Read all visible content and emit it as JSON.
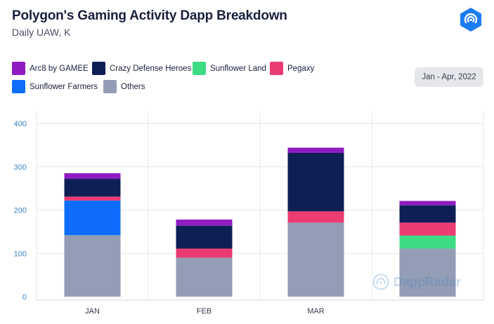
{
  "header": {
    "title": "Polygon's Gaming Activity Dapp Breakdown",
    "subtitle": "Daily UAW, K",
    "date_range": "Jan - Apr, 2022",
    "logo_icon": "dappradar-logo-icon",
    "watermark": "DappRadar"
  },
  "chart_data": {
    "type": "bar",
    "stacked": true,
    "categories": [
      "JAN",
      "FEB",
      "MAR",
      ""
    ],
    "ylim": [
      0,
      430
    ],
    "yticks": [
      0,
      100,
      200,
      300,
      400
    ],
    "grid": true,
    "legend_position": "top-left",
    "series": [
      {
        "name": "Others",
        "color": "#939db5",
        "values": [
          142,
          90,
          171,
          111
        ]
      },
      {
        "name": "Sunflower Farmers",
        "color": "#0d6efd",
        "values": [
          80,
          0,
          0,
          0
        ]
      },
      {
        "name": "Sunflower Land",
        "color": "#3ddc84",
        "values": [
          0,
          0,
          0,
          30
        ]
      },
      {
        "name": "Pegaxy",
        "color": "#ea3b73",
        "values": [
          9,
          21,
          26,
          30
        ]
      },
      {
        "name": "Crazy Defense Heroes",
        "color": "#0e1f55",
        "values": [
          41,
          53,
          135,
          40
        ]
      },
      {
        "name": "Arc8 by GAMEE",
        "color": "#8e1cc2",
        "values": [
          13,
          14,
          12,
          10
        ]
      }
    ],
    "legend": [
      {
        "name": "Arc8 by GAMEE",
        "color": "#8e1cc2"
      },
      {
        "name": "Crazy Defense Heroes",
        "color": "#0e1f55"
      },
      {
        "name": "Sunflower Land",
        "color": "#3ddc84"
      },
      {
        "name": "Pegaxy",
        "color": "#ea3b73"
      },
      {
        "name": "Sunflower Farmers",
        "color": "#0d6efd"
      },
      {
        "name": "Others",
        "color": "#939db5"
      }
    ]
  }
}
